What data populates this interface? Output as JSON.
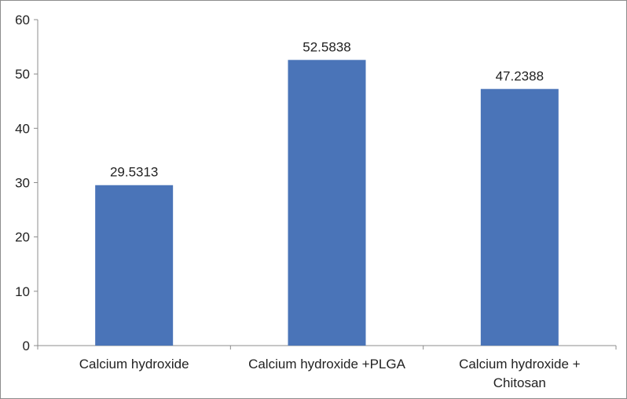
{
  "chart_data": {
    "type": "bar",
    "categories": [
      [
        "Calcium hydroxide"
      ],
      [
        "Calcium hydroxide +PLGA"
      ],
      [
        "Calcium hydroxide +",
        "Chitosan"
      ]
    ],
    "values": [
      29.5313,
      52.5838,
      47.2388
    ],
    "data_labels": [
      "29.5313",
      "52.5838",
      "47.2388"
    ],
    "title": "",
    "xlabel": "",
    "ylabel": "",
    "ylim": [
      0,
      60
    ],
    "yticks": [
      0,
      10,
      20,
      30,
      40,
      50,
      60
    ],
    "grid": false,
    "legend": "none",
    "bar_color": "#4a74b8",
    "axis_color": "#8c8c8c"
  }
}
